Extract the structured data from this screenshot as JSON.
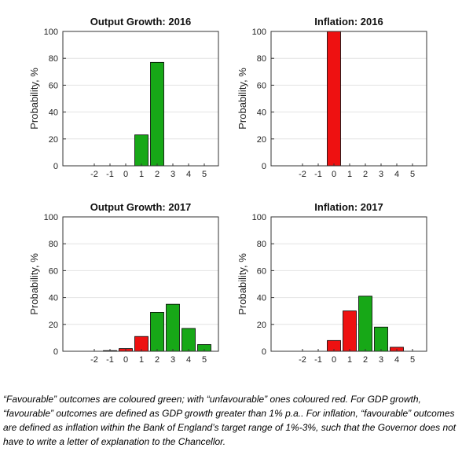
{
  "chart_data": [
    {
      "type": "bar",
      "title": "Output Growth: 2016",
      "ylabel": "Probability, %",
      "xlabel": "",
      "ylim": [
        0,
        100
      ],
      "yticks": [
        0,
        20,
        40,
        60,
        80,
        100
      ],
      "xticks": [
        "-2",
        "-1",
        "0",
        "1",
        "2",
        "3",
        "4",
        "5"
      ],
      "categories": [
        "-2",
        "-1",
        "0",
        "1",
        "2",
        "3",
        "4",
        "5"
      ],
      "values": [
        0,
        0,
        0,
        23,
        77,
        0,
        0,
        0
      ],
      "colors": [
        "red",
        "red",
        "red",
        "green",
        "green",
        "green",
        "green",
        "green"
      ]
    },
    {
      "type": "bar",
      "title": "Inflation: 2016",
      "ylabel": "Probability, %",
      "xlabel": "",
      "ylim": [
        0,
        100
      ],
      "yticks": [
        0,
        20,
        40,
        60,
        80,
        100
      ],
      "xticks": [
        "-2",
        "-1",
        "0",
        "1",
        "2",
        "3",
        "4",
        "5"
      ],
      "categories": [
        "-2",
        "-1",
        "0",
        "1",
        "2",
        "3",
        "4",
        "5"
      ],
      "values": [
        0,
        0,
        100,
        0,
        0,
        0,
        0,
        0
      ],
      "colors": [
        "red",
        "red",
        "red",
        "green",
        "green",
        "red",
        "red",
        "red"
      ]
    },
    {
      "type": "bar",
      "title": "Output Growth: 2017",
      "ylabel": "Probability, %",
      "xlabel": "",
      "ylim": [
        0,
        100
      ],
      "yticks": [
        0,
        20,
        40,
        60,
        80,
        100
      ],
      "xticks": [
        "-2",
        "-1",
        "0",
        "1",
        "2",
        "3",
        "4",
        "5"
      ],
      "categories": [
        "-2",
        "-1",
        "0",
        "1",
        "2",
        "3",
        "4",
        "5"
      ],
      "values": [
        0,
        0.5,
        2,
        11,
        29,
        35,
        17,
        5
      ],
      "colors": [
        "red",
        "red",
        "red",
        "red",
        "green",
        "green",
        "green",
        "green"
      ]
    },
    {
      "type": "bar",
      "title": "Inflation: 2017",
      "ylabel": "Probability, %",
      "xlabel": "",
      "ylim": [
        0,
        100
      ],
      "yticks": [
        0,
        20,
        40,
        60,
        80,
        100
      ],
      "xticks": [
        "-2",
        "-1",
        "0",
        "1",
        "2",
        "3",
        "4",
        "5"
      ],
      "categories": [
        "-2",
        "-1",
        "0",
        "1",
        "2",
        "3",
        "4",
        "5"
      ],
      "values": [
        0,
        0,
        8,
        30,
        41,
        18,
        3,
        0
      ],
      "colors": [
        "red",
        "red",
        "red",
        "red",
        "green",
        "green",
        "red",
        "red"
      ]
    }
  ],
  "colors": {
    "green": "#17a817",
    "red": "#ee1111",
    "grid": "#e2e2e2"
  },
  "caption": "“Favourable” outcomes are coloured green; with “unfavourable” ones coloured red. For GDP growth, “favourable” outcomes are defined as GDP growth greater than 1% p.a.. For inflation, “favourable” outcomes are defined as inflation within the Bank of England’s target range of 1%-3%, such that the Governor does not have to write a letter of explanation to the Chancellor."
}
